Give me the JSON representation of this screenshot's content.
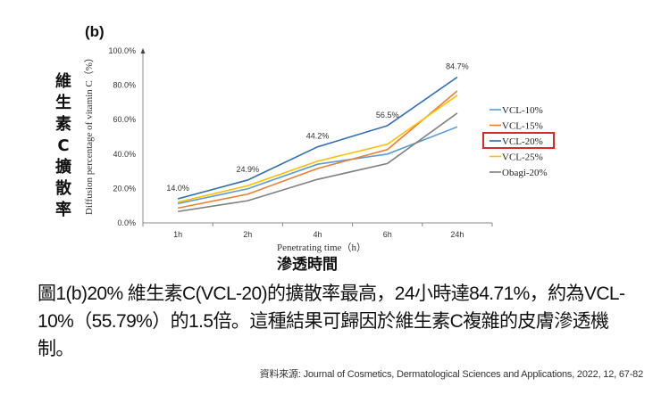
{
  "panel_label": "(b)",
  "cn_ylabel": "維生素C擴散率",
  "cn_xlabel": "滲透時間",
  "caption": "圖1(b)20% 維生素C(VCL-20)的擴散率最高，24小時達84.71%，約為VCL-10%（55.79%）的1.5倍。這種結果可歸因於維生素C複雜的皮膚滲透機制。",
  "source": "資料來源: Journal of Cosmetics, Dermatological Sciences and Applications, 2022, 12, 67-82",
  "chart_data": {
    "type": "line",
    "xlabel": "Penetrating time（h）",
    "ylabel": "Diffusion percentage of vitamin C（%）",
    "categories": [
      "1h",
      "2h",
      "4h",
      "6h",
      "24h"
    ],
    "ylim": [
      0,
      100
    ],
    "yticks": [
      "0.0%",
      "20.0%",
      "40.0%",
      "60.0%",
      "80.0%",
      "100.0%"
    ],
    "grid": false,
    "legend_position": "right",
    "highlighted_series": "VCL-20%",
    "series": [
      {
        "name": "VCL-10%",
        "color": "#5b9bd5",
        "values": [
          11.2,
          19.8,
          34.1,
          40.0,
          55.8
        ]
      },
      {
        "name": "VCL-15%",
        "color": "#ed7d31",
        "values": [
          8.6,
          16.7,
          31.6,
          42.6,
          76.7
        ]
      },
      {
        "name": "VCL-20%",
        "color": "#2e6cb0",
        "values": [
          14.0,
          24.9,
          44.2,
          56.5,
          84.7
        ],
        "data_labels": [
          "14.0%",
          "24.9%",
          "44.2%",
          "56.5%",
          "84.7%"
        ]
      },
      {
        "name": "VCL-25%",
        "color": "#ffc000",
        "values": [
          12.0,
          21.6,
          35.9,
          45.7,
          74.1
        ]
      },
      {
        "name": "Obagi-20%",
        "color": "#7f7f7f",
        "values": [
          6.6,
          12.9,
          25.3,
          34.5,
          63.8
        ]
      }
    ]
  }
}
